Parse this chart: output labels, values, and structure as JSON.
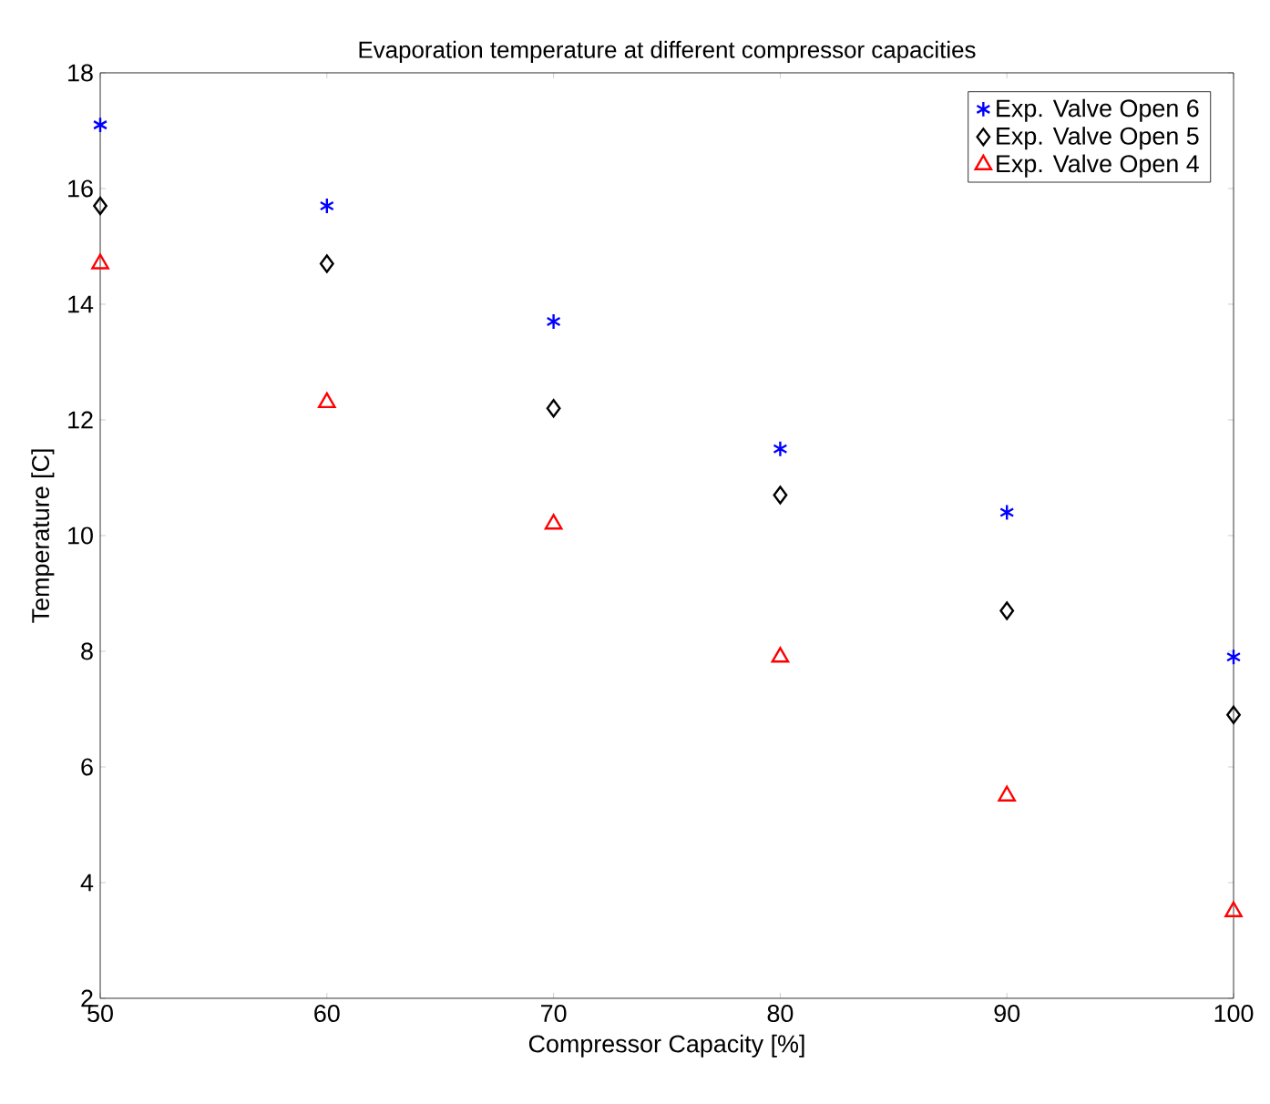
{
  "chart_data": {
    "type": "scatter",
    "title": "Evaporation temperature at different compressor capacities",
    "xlabel": "Compressor Capacity [%]",
    "ylabel": "Temperature [C]",
    "x": [
      50,
      60,
      70,
      80,
      90,
      100
    ],
    "series": [
      {
        "name": "Exp. Valve Open 6",
        "color": "#0000ff",
        "marker": "cross",
        "values": [
          17.1,
          15.7,
          13.7,
          11.5,
          10.4,
          7.9
        ]
      },
      {
        "name": "Exp. Valve Open 5",
        "color": "#000000",
        "marker": "diamond",
        "values": [
          15.7,
          14.7,
          12.2,
          10.7,
          8.7,
          6.9
        ]
      },
      {
        "name": "Exp. Valve Open 4",
        "color": "#ff0000",
        "marker": "triangle",
        "values": [
          14.7,
          12.3,
          10.2,
          7.9,
          5.5,
          3.5
        ]
      }
    ],
    "xlim": [
      50,
      100
    ],
    "ylim": [
      2,
      18
    ],
    "xticks": [
      50,
      60,
      70,
      80,
      90,
      100
    ],
    "yticks": [
      2,
      4,
      6,
      8,
      10,
      12,
      14,
      16,
      18
    ],
    "grid": false,
    "legend": "top right"
  }
}
